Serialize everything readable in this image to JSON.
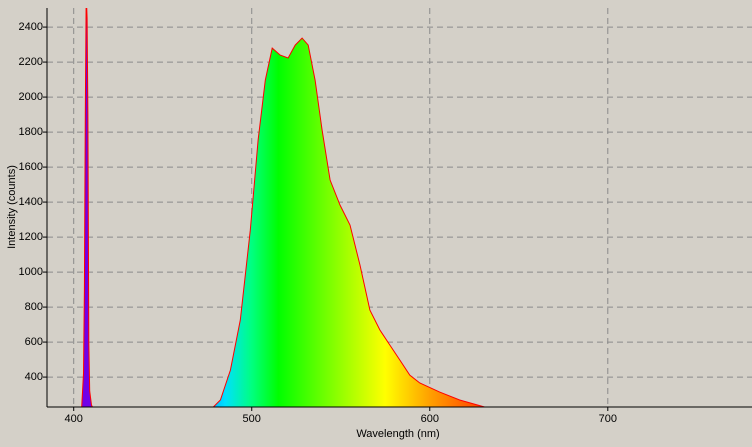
{
  "chart_data": {
    "type": "spectrum",
    "x_label": "Wavelength (nm)",
    "y_label": "Intensity (counts)",
    "x": [
      403,
      404.5,
      405.5,
      406,
      406.5,
      407,
      407.5,
      408,
      408.5,
      409,
      410,
      412,
      478.4,
      482.4,
      488,
      493.6,
      499.2,
      503.6,
      507.6,
      511.5,
      516,
      520.4,
      524.4,
      528.3,
      531.7,
      535.6,
      539.5,
      544,
      549.6,
      555.2,
      560.8,
      566.4,
      572,
      577.6,
      583.2,
      588.8,
      594.4,
      605.6,
      616.8,
      630.8,
      650,
      780
    ],
    "series": [
      {
        "color": "#ff0000",
        "values": [
          200,
          230,
          420,
          900,
          1900,
          2600,
          2450,
          1900,
          600,
          320,
          240,
          200,
          229,
          269,
          440,
          726,
          1240,
          1754,
          2097,
          2280,
          2240,
          2223,
          2297,
          2337,
          2297,
          2097,
          1811,
          1526,
          1383,
          1269,
          1040,
          783,
          669,
          583,
          497,
          411,
          366,
          314,
          269,
          229,
          200,
          200
        ]
      }
    ],
    "xlim": [
      385,
      781
    ],
    "ylim": [
      229,
      2509
    ],
    "xticks": [
      400,
      500,
      600,
      700
    ],
    "yticks": [
      400,
      600,
      800,
      1000,
      1200,
      1400,
      1600,
      1800,
      2000,
      2200,
      2400
    ],
    "grid": true
  }
}
